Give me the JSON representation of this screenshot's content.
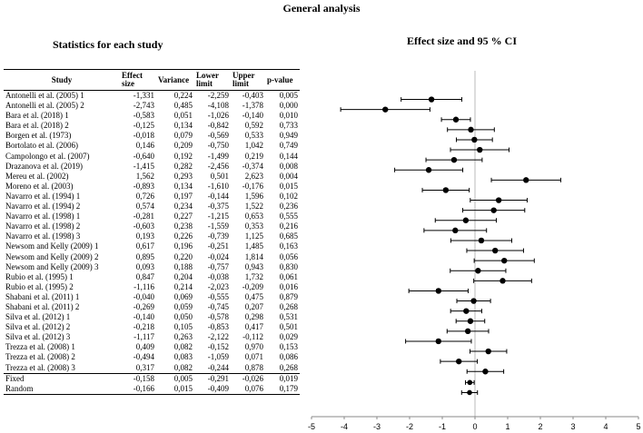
{
  "titles": {
    "main": "General analysis",
    "stats": "Statistics for each study",
    "effect": "Effect size and 95 % CI"
  },
  "table": {
    "headers": {
      "study": "Study",
      "effect_size": "Effect size",
      "variance": "Variance",
      "lower_limit": "Lower limit",
      "upper_limit": "Upper limit",
      "p_value": "p-value"
    },
    "rows": [
      {
        "study": "Antonelli et al. (2005) 1",
        "effect": "-1,331",
        "variance": "0,224",
        "lower": "-2,259",
        "upper": "-0,403",
        "p": "0,005"
      },
      {
        "study": "Antonelli et al. (2005) 2",
        "effect": "-2,743",
        "variance": "0,485",
        "lower": "-4,108",
        "upper": "-1,378",
        "p": "0,000"
      },
      {
        "study": "Bara et al. (2018) 1",
        "effect": "-0,583",
        "variance": "0,051",
        "lower": "-1,026",
        "upper": "-0,140",
        "p": "0,010"
      },
      {
        "study": "Bara et al. (2018) 2",
        "effect": "-0,125",
        "variance": "0,134",
        "lower": "-0,842",
        "upper": "0,592",
        "p": "0,733"
      },
      {
        "study": "Borgen et al. (1973)",
        "effect": "-0,018",
        "variance": "0,079",
        "lower": "-0,569",
        "upper": "0,533",
        "p": "0,949"
      },
      {
        "study": "Bortolato et al. (2006)",
        "effect": "0,146",
        "variance": "0,209",
        "lower": "-0,750",
        "upper": "1,042",
        "p": "0,749"
      },
      {
        "study": "Campolongo et al. (2007)",
        "effect": "-0,640",
        "variance": "0,192",
        "lower": "-1,499",
        "upper": "0,219",
        "p": "0,144"
      },
      {
        "study": "Drazanova et al. (2019)",
        "effect": "-1,415",
        "variance": "0,282",
        "lower": "-2,456",
        "upper": "-0,374",
        "p": "0,008"
      },
      {
        "study": "Mereu et al. (2002)",
        "effect": "1,562",
        "variance": "0,293",
        "lower": "0,501",
        "upper": "2,623",
        "p": "0,004"
      },
      {
        "study": "Moreno et al. (2003)",
        "effect": "-0,893",
        "variance": "0,134",
        "lower": "-1,610",
        "upper": "-0,176",
        "p": "0,015"
      },
      {
        "study": "Navarro et al. (1994) 1",
        "effect": "0,726",
        "variance": "0,197",
        "lower": "-0,144",
        "upper": "1,596",
        "p": "0,102"
      },
      {
        "study": "Navarro et al. (1994) 2",
        "effect": "0,574",
        "variance": "0,234",
        "lower": "-0,375",
        "upper": "1,522",
        "p": "0,236"
      },
      {
        "study": "Navarro et al. (1998) 1",
        "effect": "-0,281",
        "variance": "0,227",
        "lower": "-1,215",
        "upper": "0,653",
        "p": "0,555"
      },
      {
        "study": "Navarro et al. (1998) 2",
        "effect": "-0,603",
        "variance": "0,238",
        "lower": "-1,559",
        "upper": "0,353",
        "p": "0,216"
      },
      {
        "study": "Navarro et al. (1998) 3",
        "effect": "0,193",
        "variance": "0,226",
        "lower": "-0,739",
        "upper": "1,125",
        "p": "0,685"
      },
      {
        "study": "Newsom and Kelly (2009) 1",
        "effect": "0,617",
        "variance": "0,196",
        "lower": "-0,251",
        "upper": "1,485",
        "p": "0,163"
      },
      {
        "study": "Newsom and Kelly (2009) 2",
        "effect": "0,895",
        "variance": "0,220",
        "lower": "-0,024",
        "upper": "1,814",
        "p": "0,056"
      },
      {
        "study": "Newsom and Kelly (2009) 3",
        "effect": "0,093",
        "variance": "0,188",
        "lower": "-0,757",
        "upper": "0,943",
        "p": "0,830"
      },
      {
        "study": "Rubio et al. (1995) 1",
        "effect": "0,847",
        "variance": "0,204",
        "lower": "-0,038",
        "upper": "1,732",
        "p": "0,061"
      },
      {
        "study": "Rubio et al. (1995) 2",
        "effect": "-1,116",
        "variance": "0,214",
        "lower": "-2,023",
        "upper": "-0,209",
        "p": "0,016"
      },
      {
        "study": "Shabani et al. (2011) 1",
        "effect": "-0,040",
        "variance": "0,069",
        "lower": "-0,555",
        "upper": "0,475",
        "p": "0,879"
      },
      {
        "study": "Shabani et al. (2011) 2",
        "effect": "-0,269",
        "variance": "0,059",
        "lower": "-0,745",
        "upper": "0,207",
        "p": "0,268"
      },
      {
        "study": "Silva et al. (2012) 1",
        "effect": "-0,140",
        "variance": "0,050",
        "lower": "-0,578",
        "upper": "0,298",
        "p": "0,531"
      },
      {
        "study": "Silva et al. (2012) 2",
        "effect": "-0,218",
        "variance": "0,105",
        "lower": "-0,853",
        "upper": "0,417",
        "p": "0,501"
      },
      {
        "study": "Silva et al. (2012) 3",
        "effect": "-1,117",
        "variance": "0,263",
        "lower": "-2,122",
        "upper": "-0,112",
        "p": "0,029"
      },
      {
        "study": "Trezza et al. (2008) 1",
        "effect": "0,409",
        "variance": "0,082",
        "lower": "-0,152",
        "upper": "0,970",
        "p": "0,153"
      },
      {
        "study": "Trezza et al. (2008) 2",
        "effect": "-0,494",
        "variance": "0,083",
        "lower": "-1,059",
        "upper": "0,071",
        "p": "0,086"
      },
      {
        "study": "Trezza et al. (2008) 3",
        "effect": "0,317",
        "variance": "0,082",
        "lower": "-0,244",
        "upper": "0,878",
        "p": "0,268"
      }
    ],
    "summary": [
      {
        "study": "Fixed",
        "effect": "-0,158",
        "variance": "0,005",
        "lower": "-0,291",
        "upper": "-0,026",
        "p": "0,019"
      },
      {
        "study": "Random",
        "effect": "-0,166",
        "variance": "0,015",
        "lower": "-0,409",
        "upper": "0,076",
        "p": "0,179"
      }
    ]
  },
  "chart_data": {
    "type": "forest",
    "title": "Effect size and 95 % CI",
    "xlim": [
      -5,
      5
    ],
    "xticks": [
      -5,
      -4,
      -3,
      -2,
      -1,
      0,
      1,
      2,
      3,
      4,
      5
    ],
    "reference_line": 0,
    "studies": [
      {
        "label": "Antonelli et al. (2005) 1",
        "effect": -1.331,
        "lower": -2.259,
        "upper": -0.403
      },
      {
        "label": "Antonelli et al. (2005) 2",
        "effect": -2.743,
        "lower": -4.108,
        "upper": -1.378
      },
      {
        "label": "Bara et al. (2018) 1",
        "effect": -0.583,
        "lower": -1.026,
        "upper": -0.14
      },
      {
        "label": "Bara et al. (2018) 2",
        "effect": -0.125,
        "lower": -0.842,
        "upper": 0.592
      },
      {
        "label": "Borgen et al. (1973)",
        "effect": -0.018,
        "lower": -0.569,
        "upper": 0.533
      },
      {
        "label": "Bortolato et al. (2006)",
        "effect": 0.146,
        "lower": -0.75,
        "upper": 1.042
      },
      {
        "label": "Campolongo et al. (2007)",
        "effect": -0.64,
        "lower": -1.499,
        "upper": 0.219
      },
      {
        "label": "Drazanova et al. (2019)",
        "effect": -1.415,
        "lower": -2.456,
        "upper": -0.374
      },
      {
        "label": "Mereu et al. (2002)",
        "effect": 1.562,
        "lower": 0.501,
        "upper": 2.623
      },
      {
        "label": "Moreno et al. (2003)",
        "effect": -0.893,
        "lower": -1.61,
        "upper": -0.176
      },
      {
        "label": "Navarro et al. (1994) 1",
        "effect": 0.726,
        "lower": -0.144,
        "upper": 1.596
      },
      {
        "label": "Navarro et al. (1994) 2",
        "effect": 0.574,
        "lower": -0.375,
        "upper": 1.522
      },
      {
        "label": "Navarro et al. (1998) 1",
        "effect": -0.281,
        "lower": -1.215,
        "upper": 0.653
      },
      {
        "label": "Navarro et al. (1998) 2",
        "effect": -0.603,
        "lower": -1.559,
        "upper": 0.353
      },
      {
        "label": "Navarro et al. (1998) 3",
        "effect": 0.193,
        "lower": -0.739,
        "upper": 1.125
      },
      {
        "label": "Newsom and Kelly (2009) 1",
        "effect": 0.617,
        "lower": -0.251,
        "upper": 1.485
      },
      {
        "label": "Newsom and Kelly (2009) 2",
        "effect": 0.895,
        "lower": -0.024,
        "upper": 1.814
      },
      {
        "label": "Newsom and Kelly (2009) 3",
        "effect": 0.093,
        "lower": -0.757,
        "upper": 0.943
      },
      {
        "label": "Rubio et al. (1995) 1",
        "effect": 0.847,
        "lower": -0.038,
        "upper": 1.732
      },
      {
        "label": "Rubio et al. (1995) 2",
        "effect": -1.116,
        "lower": -2.023,
        "upper": -0.209
      },
      {
        "label": "Shabani et al. (2011) 1",
        "effect": -0.04,
        "lower": -0.555,
        "upper": 0.475
      },
      {
        "label": "Shabani et al. (2011) 2",
        "effect": -0.269,
        "lower": -0.745,
        "upper": 0.207
      },
      {
        "label": "Silva et al. (2012) 1",
        "effect": -0.14,
        "lower": -0.578,
        "upper": 0.298
      },
      {
        "label": "Silva et al. (2012) 2",
        "effect": -0.218,
        "lower": -0.853,
        "upper": 0.417
      },
      {
        "label": "Silva et al. (2012) 3",
        "effect": -1.117,
        "lower": -2.122,
        "upper": -0.112
      },
      {
        "label": "Trezza et al. (2008) 1",
        "effect": 0.409,
        "lower": -0.152,
        "upper": 0.97
      },
      {
        "label": "Trezza et al. (2008) 2",
        "effect": -0.494,
        "lower": -1.059,
        "upper": 0.071
      },
      {
        "label": "Trezza et al. (2008) 3",
        "effect": 0.317,
        "lower": -0.244,
        "upper": 0.878
      },
      {
        "label": "Fixed",
        "effect": -0.158,
        "lower": -0.291,
        "upper": -0.026
      },
      {
        "label": "Random",
        "effect": -0.166,
        "lower": -0.409,
        "upper": 0.076
      }
    ]
  }
}
